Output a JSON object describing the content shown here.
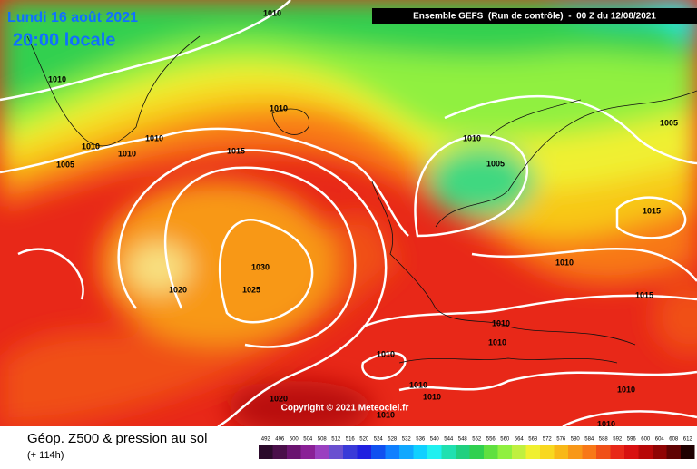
{
  "header": {
    "date": "Lundi 16 août 2021",
    "time": "20:00 locale",
    "run": "Ensemble GEFS  (Run de contrôle)  -  00 Z du 12/08/2021"
  },
  "isobar_labels": [
    "1010",
    "1010",
    "1010",
    "1010",
    "1010",
    "1010",
    "1005",
    "1015",
    "1010",
    "1005",
    "1005",
    "1015",
    "1030",
    "1025",
    "1020",
    "1010",
    "1015",
    "1010",
    "1010",
    "1010",
    "1010",
    "1010",
    "1020",
    "1010",
    "1010",
    "1010"
  ],
  "copyright": "Copyright © 2021 Meteociel.fr",
  "legend": {
    "title": "Géop. Z500 & pression au sol",
    "lead": "(+ 114h)",
    "scale": [
      492,
      496,
      500,
      504,
      508,
      512,
      516,
      520,
      524,
      528,
      532,
      536,
      540,
      544,
      548,
      552,
      556,
      560,
      564,
      568,
      572,
      576,
      580,
      584,
      588,
      592,
      596,
      600,
      604,
      608,
      612
    ],
    "colors": [
      "#2b0a2b",
      "#4a0f4a",
      "#6a1470",
      "#8a2096",
      "#9a40c0",
      "#6a50d0",
      "#3a3ad8",
      "#2020e0",
      "#1050f0",
      "#1080ff",
      "#10a8ff",
      "#10d0ff",
      "#20f0f0",
      "#20e0b0",
      "#20d080",
      "#30d050",
      "#60e040",
      "#90f040",
      "#c0f040",
      "#f0f030",
      "#f8d820",
      "#f8b818",
      "#f89818",
      "#f87818",
      "#f05018",
      "#e82818",
      "#d81010",
      "#b80808",
      "#900404",
      "#600202",
      "#200000"
    ]
  }
}
